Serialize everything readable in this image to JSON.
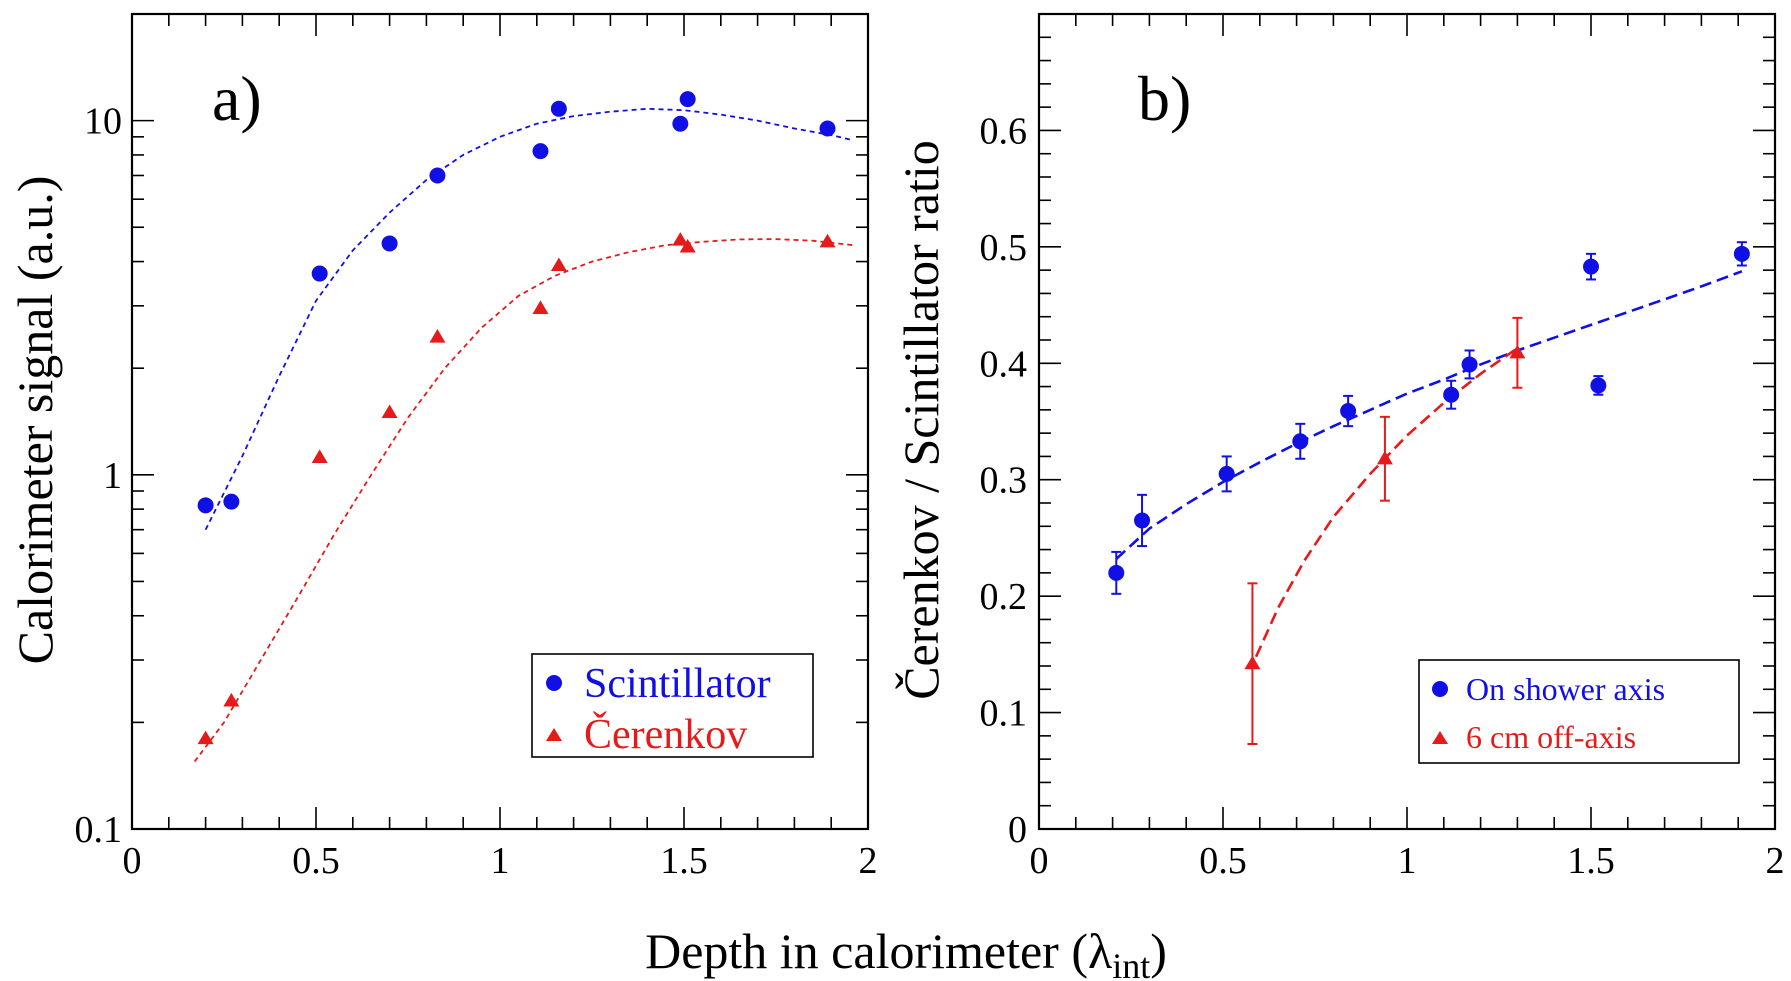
{
  "xlabel": "Depth in calorimeter (λ",
  "xlabel_sub": "int",
  "xlabel_close": ")",
  "colors": {
    "blue": "#1010e6",
    "red": "#e61a1a"
  },
  "chart_data": [
    {
      "type": "scatter",
      "panel_label": "a)",
      "ylabel": "Calorimeter signal (a.u.)",
      "xlim": [
        0,
        2
      ],
      "ylim": [
        0.1,
        20
      ],
      "yscale": "log",
      "x_ticks": [
        "0",
        "0.5",
        "1",
        "1.5",
        "2"
      ],
      "y_ticks": [
        "0.1",
        "1",
        "10"
      ],
      "legend_placement": "bottom-right",
      "series": [
        {
          "name": "Scintillator",
          "marker": "circle",
          "color": "#1010e6",
          "points": [
            [
              0.2,
              0.82
            ],
            [
              0.27,
              0.84
            ],
            [
              0.51,
              3.7
            ],
            [
              0.7,
              4.5
            ],
            [
              0.83,
              7.0
            ],
            [
              1.11,
              8.2
            ],
            [
              1.16,
              10.8
            ],
            [
              1.49,
              9.8
            ],
            [
              1.51,
              11.5
            ],
            [
              1.89,
              9.5
            ]
          ],
          "fit": [
            [
              0.2,
              0.7
            ],
            [
              0.3,
              1.13
            ],
            [
              0.4,
              1.9
            ],
            [
              0.5,
              3.1
            ],
            [
              0.6,
              4.3
            ],
            [
              0.7,
              5.5
            ],
            [
              0.8,
              6.8
            ],
            [
              0.9,
              8.0
            ],
            [
              1.0,
              9.0
            ],
            [
              1.1,
              9.8
            ],
            [
              1.2,
              10.3
            ],
            [
              1.3,
              10.6
            ],
            [
              1.4,
              10.8
            ],
            [
              1.5,
              10.7
            ],
            [
              1.6,
              10.4
            ],
            [
              1.7,
              10.0
            ],
            [
              1.8,
              9.5
            ],
            [
              1.9,
              9.1
            ],
            [
              1.96,
              8.8
            ]
          ]
        },
        {
          "name": "Čerenkov",
          "marker": "triangle",
          "color": "#e61a1a",
          "points": [
            [
              0.2,
              0.18
            ],
            [
              0.27,
              0.23
            ],
            [
              0.51,
              1.12
            ],
            [
              0.7,
              1.5
            ],
            [
              0.83,
              2.45
            ],
            [
              1.11,
              2.95
            ],
            [
              1.16,
              3.9
            ],
            [
              1.49,
              4.6
            ],
            [
              1.51,
              4.4
            ],
            [
              1.89,
              4.55
            ]
          ],
          "fit": [
            [
              0.17,
              0.155
            ],
            [
              0.25,
              0.2
            ],
            [
              0.35,
              0.3
            ],
            [
              0.45,
              0.45
            ],
            [
              0.55,
              0.68
            ],
            [
              0.65,
              1.0
            ],
            [
              0.75,
              1.45
            ],
            [
              0.85,
              2.0
            ],
            [
              0.95,
              2.6
            ],
            [
              1.05,
              3.2
            ],
            [
              1.15,
              3.65
            ],
            [
              1.25,
              4.0
            ],
            [
              1.35,
              4.25
            ],
            [
              1.45,
              4.45
            ],
            [
              1.55,
              4.55
            ],
            [
              1.65,
              4.62
            ],
            [
              1.75,
              4.63
            ],
            [
              1.85,
              4.58
            ],
            [
              1.96,
              4.45
            ]
          ]
        }
      ]
    },
    {
      "type": "scatter",
      "panel_label": "b)",
      "ylabel": "Čerenkov / Scintillator ratio",
      "xlim": [
        0,
        2
      ],
      "ylim": [
        0,
        0.7
      ],
      "x_ticks": [
        "0",
        "0.5",
        "1",
        "1.5",
        "2"
      ],
      "y_ticks": [
        "0",
        "0.1",
        "0.2",
        "0.3",
        "0.4",
        "0.5",
        "0.6"
      ],
      "legend_placement": "bottom-right",
      "series": [
        {
          "name": "On shower axis",
          "marker": "circle",
          "color": "#1010e6",
          "points": [
            [
              0.21,
              0.22,
              0.018
            ],
            [
              0.28,
              0.265,
              0.022
            ],
            [
              0.51,
              0.305,
              0.015
            ],
            [
              0.71,
              0.333,
              0.015
            ],
            [
              0.84,
              0.359,
              0.013
            ],
            [
              1.12,
              0.373,
              0.012
            ],
            [
              1.17,
              0.399,
              0.012
            ],
            [
              1.5,
              0.483,
              0.011
            ],
            [
              1.52,
              0.381,
              0.008
            ],
            [
              1.91,
              0.494,
              0.01
            ]
          ],
          "fit": [
            [
              0.21,
              0.232
            ],
            [
              0.3,
              0.258
            ],
            [
              0.4,
              0.279
            ],
            [
              0.5,
              0.298
            ],
            [
              0.6,
              0.315
            ],
            [
              0.7,
              0.331
            ],
            [
              0.8,
              0.346
            ],
            [
              0.9,
              0.36
            ],
            [
              1.0,
              0.374
            ],
            [
              1.1,
              0.386
            ],
            [
              1.2,
              0.399
            ],
            [
              1.3,
              0.411
            ],
            [
              1.4,
              0.422
            ],
            [
              1.5,
              0.433
            ],
            [
              1.6,
              0.444
            ],
            [
              1.7,
              0.455
            ],
            [
              1.8,
              0.466
            ],
            [
              1.91,
              0.479
            ]
          ]
        },
        {
          "name": "6 cm off-axis",
          "marker": "triangle",
          "color": "#e61a1a",
          "points": [
            [
              0.58,
              0.142,
              0.069
            ],
            [
              0.94,
              0.318,
              0.036
            ],
            [
              1.3,
              0.409,
              0.03
            ]
          ],
          "fit": [
            [
              0.59,
              0.148
            ],
            [
              0.65,
              0.19
            ],
            [
              0.72,
              0.23
            ],
            [
              0.8,
              0.268
            ],
            [
              0.9,
              0.305
            ],
            [
              1.0,
              0.338
            ],
            [
              1.1,
              0.366
            ],
            [
              1.2,
              0.391
            ],
            [
              1.3,
              0.413
            ]
          ]
        }
      ]
    }
  ]
}
